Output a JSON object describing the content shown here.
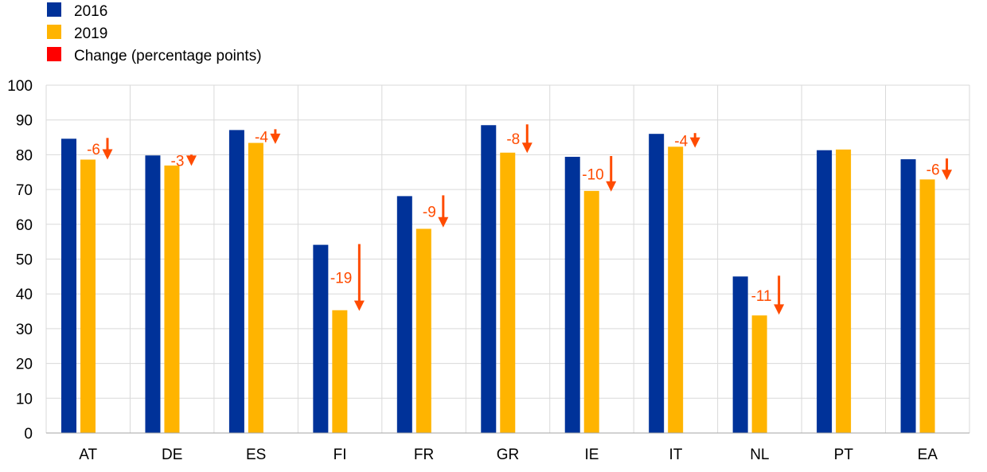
{
  "colors": {
    "series_2016": "#003299",
    "series_2019": "#FFB400",
    "change_legend": "#FF0000",
    "change_marks": "#FF4B00",
    "grid": "#D9D9D9"
  },
  "chart_data": {
    "type": "bar",
    "categories": [
      "AT",
      "DE",
      "ES",
      "FI",
      "FR",
      "GR",
      "IE",
      "IT",
      "NL",
      "PT",
      "EA"
    ],
    "series": [
      {
        "name": "2016",
        "values": [
          84.6,
          79.8,
          87.1,
          54.1,
          68.1,
          88.5,
          79.4,
          86.0,
          45.0,
          81.3,
          78.7
        ]
      },
      {
        "name": "2019",
        "values": [
          78.6,
          76.9,
          83.4,
          35.3,
          58.7,
          80.6,
          69.6,
          82.3,
          33.8,
          81.5,
          72.9
        ]
      }
    ],
    "change": {
      "name": "Change (percentage points)",
      "labels": [
        "-6",
        "-3",
        "-4",
        "-19",
        "-9",
        "-8",
        "-10",
        "-4",
        "-11",
        "",
        "-6"
      ],
      "values": [
        -6,
        -3,
        -4,
        -19,
        -9,
        -8,
        -10,
        -4,
        -11,
        0,
        -6
      ]
    },
    "ylim": [
      0,
      100
    ],
    "yticks": [
      "0",
      "10",
      "20",
      "30",
      "40",
      "50",
      "60",
      "70",
      "80",
      "90",
      "100"
    ],
    "grid": true,
    "legend_position": "top-left",
    "title": "",
    "xlabel": "",
    "ylabel": ""
  }
}
